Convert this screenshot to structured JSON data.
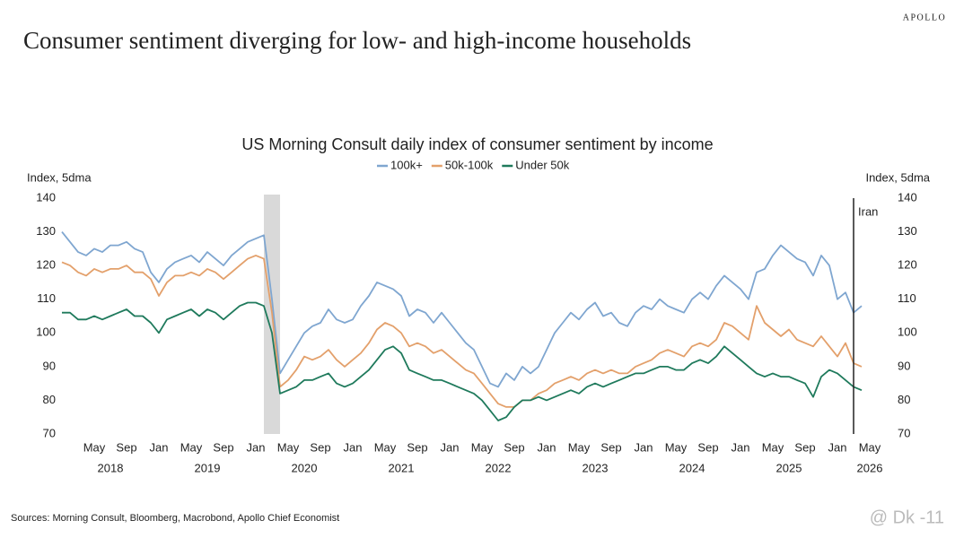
{
  "brand": "APOLLO",
  "headline": "Consumer sentiment diverging for low- and high-income households",
  "source": "Sources: Morning Consult, Bloomberg, Macrobond, Apollo Chief Economist",
  "watermark": "@ Dk -11",
  "chart_data": {
    "type": "line",
    "title": "US Morning Consult daily index of consumer sentiment by income",
    "ylabel": "Index, 5dma",
    "y2label": "Index, 5dma",
    "ylim": [
      70,
      140
    ],
    "yticks": [
      70,
      80,
      90,
      100,
      110,
      120,
      130,
      140
    ],
    "y2lim": [
      70,
      140
    ],
    "y2ticks": [
      70,
      80,
      90,
      100,
      110,
      120,
      130,
      140
    ],
    "xlim": [
      "2018-01",
      "2026-07"
    ],
    "xticks": [
      {
        "value": "2018-05",
        "label": "May"
      },
      {
        "value": "2018-09",
        "label": "Sep"
      },
      {
        "value": "2019-01",
        "label": "Jan"
      },
      {
        "value": "2019-05",
        "label": "May"
      },
      {
        "value": "2019-09",
        "label": "Sep"
      },
      {
        "value": "2020-01",
        "label": "Jan"
      },
      {
        "value": "2020-05",
        "label": "May"
      },
      {
        "value": "2020-09",
        "label": "Sep"
      },
      {
        "value": "2021-01",
        "label": "Jan"
      },
      {
        "value": "2021-05",
        "label": "May"
      },
      {
        "value": "2021-09",
        "label": "Sep"
      },
      {
        "value": "2022-01",
        "label": "Jan"
      },
      {
        "value": "2022-05",
        "label": "May"
      },
      {
        "value": "2022-09",
        "label": "Sep"
      },
      {
        "value": "2023-01",
        "label": "Jan"
      },
      {
        "value": "2023-05",
        "label": "May"
      },
      {
        "value": "2023-09",
        "label": "Sep"
      },
      {
        "value": "2024-01",
        "label": "Jan"
      },
      {
        "value": "2024-05",
        "label": "May"
      },
      {
        "value": "2024-09",
        "label": "Sep"
      },
      {
        "value": "2025-01",
        "label": "Jan"
      },
      {
        "value": "2025-05",
        "label": "May"
      },
      {
        "value": "2025-09",
        "label": "Sep"
      },
      {
        "value": "2026-01",
        "label": "Jan"
      },
      {
        "value": "2026-05",
        "label": "May"
      }
    ],
    "year_labels": [
      {
        "value": "2018-07",
        "label": "2018"
      },
      {
        "value": "2019-07",
        "label": "2019"
      },
      {
        "value": "2020-07",
        "label": "2020"
      },
      {
        "value": "2021-07",
        "label": "2021"
      },
      {
        "value": "2022-07",
        "label": "2022"
      },
      {
        "value": "2023-07",
        "label": "2023"
      },
      {
        "value": "2024-07",
        "label": "2024"
      },
      {
        "value": "2025-07",
        "label": "2025"
      },
      {
        "value": "2026-05",
        "label": "2026"
      }
    ],
    "shaded_range": [
      "2020-02",
      "2020-04"
    ],
    "annotation": {
      "x": "2026-03",
      "label": "Iran"
    },
    "x": [
      "2018-01",
      "2018-02",
      "2018-03",
      "2018-04",
      "2018-05",
      "2018-06",
      "2018-07",
      "2018-08",
      "2018-09",
      "2018-10",
      "2018-11",
      "2018-12",
      "2019-01",
      "2019-02",
      "2019-03",
      "2019-04",
      "2019-05",
      "2019-06",
      "2019-07",
      "2019-08",
      "2019-09",
      "2019-10",
      "2019-11",
      "2019-12",
      "2020-01",
      "2020-02",
      "2020-03",
      "2020-04",
      "2020-05",
      "2020-06",
      "2020-07",
      "2020-08",
      "2020-09",
      "2020-10",
      "2020-11",
      "2020-12",
      "2021-01",
      "2021-02",
      "2021-03",
      "2021-04",
      "2021-05",
      "2021-06",
      "2021-07",
      "2021-08",
      "2021-09",
      "2021-10",
      "2021-11",
      "2021-12",
      "2022-01",
      "2022-02",
      "2022-03",
      "2022-04",
      "2022-05",
      "2022-06",
      "2022-07",
      "2022-08",
      "2022-09",
      "2022-10",
      "2022-11",
      "2022-12",
      "2023-01",
      "2023-02",
      "2023-03",
      "2023-04",
      "2023-05",
      "2023-06",
      "2023-07",
      "2023-08",
      "2023-09",
      "2023-10",
      "2023-11",
      "2023-12",
      "2024-01",
      "2024-02",
      "2024-03",
      "2024-04",
      "2024-05",
      "2024-06",
      "2024-07",
      "2024-08",
      "2024-09",
      "2024-10",
      "2024-11",
      "2024-12",
      "2025-01",
      "2025-02",
      "2025-03",
      "2025-04",
      "2025-05",
      "2025-06",
      "2025-07",
      "2025-08",
      "2025-09",
      "2025-10",
      "2025-11",
      "2025-12",
      "2026-01",
      "2026-02",
      "2026-03",
      "2026-04"
    ],
    "series": [
      {
        "name": "100k+",
        "color": "#7fa6d0",
        "values": [
          130,
          127,
          124,
          123,
          125,
          124,
          126,
          126,
          127,
          125,
          124,
          118,
          115,
          119,
          121,
          122,
          123,
          121,
          124,
          122,
          120,
          123,
          125,
          127,
          128,
          129,
          110,
          88,
          92,
          96,
          100,
          102,
          103,
          107,
          104,
          103,
          104,
          108,
          111,
          115,
          114,
          113,
          111,
          105,
          107,
          106,
          103,
          106,
          103,
          100,
          97,
          95,
          90,
          85,
          84,
          88,
          86,
          90,
          88,
          90,
          95,
          100,
          103,
          106,
          104,
          107,
          109,
          105,
          106,
          103,
          102,
          106,
          108,
          107,
          110,
          108,
          107,
          106,
          110,
          112,
          110,
          114,
          117,
          115,
          113,
          110,
          118,
          119,
          123,
          126,
          124,
          122,
          121,
          117,
          123,
          120,
          110,
          112,
          106,
          108
        ]
      },
      {
        "name": "50k-100k",
        "color": "#e3a06b",
        "values": [
          121,
          120,
          118,
          117,
          119,
          118,
          119,
          119,
          120,
          118,
          118,
          116,
          111,
          115,
          117,
          117,
          118,
          117,
          119,
          118,
          116,
          118,
          120,
          122,
          123,
          122,
          106,
          84,
          86,
          89,
          93,
          92,
          93,
          95,
          92,
          90,
          92,
          94,
          97,
          101,
          103,
          102,
          100,
          96,
          97,
          96,
          94,
          95,
          93,
          91,
          89,
          88,
          85,
          82,
          79,
          78,
          78,
          80,
          80,
          82,
          83,
          85,
          86,
          87,
          86,
          88,
          89,
          88,
          89,
          88,
          88,
          90,
          91,
          92,
          94,
          95,
          94,
          93,
          96,
          97,
          96,
          98,
          103,
          102,
          100,
          98,
          108,
          103,
          101,
          99,
          101,
          98,
          97,
          96,
          99,
          96,
          93,
          97,
          91,
          90
        ]
      },
      {
        "name": "Under 50k",
        "color": "#1f7a5c",
        "values": [
          106,
          106,
          104,
          104,
          105,
          104,
          105,
          106,
          107,
          105,
          105,
          103,
          100,
          104,
          105,
          106,
          107,
          105,
          107,
          106,
          104,
          106,
          108,
          109,
          109,
          108,
          100,
          82,
          83,
          84,
          86,
          86,
          87,
          88,
          85,
          84,
          85,
          87,
          89,
          92,
          95,
          96,
          94,
          89,
          88,
          87,
          86,
          86,
          85,
          84,
          83,
          82,
          80,
          77,
          74,
          75,
          78,
          80,
          80,
          81,
          80,
          81,
          82,
          83,
          82,
          84,
          85,
          84,
          85,
          86,
          87,
          88,
          88,
          89,
          90,
          90,
          89,
          89,
          91,
          92,
          91,
          93,
          96,
          94,
          92,
          90,
          88,
          87,
          88,
          87,
          87,
          86,
          85,
          81,
          87,
          89,
          88,
          86,
          84,
          83
        ]
      }
    ]
  }
}
